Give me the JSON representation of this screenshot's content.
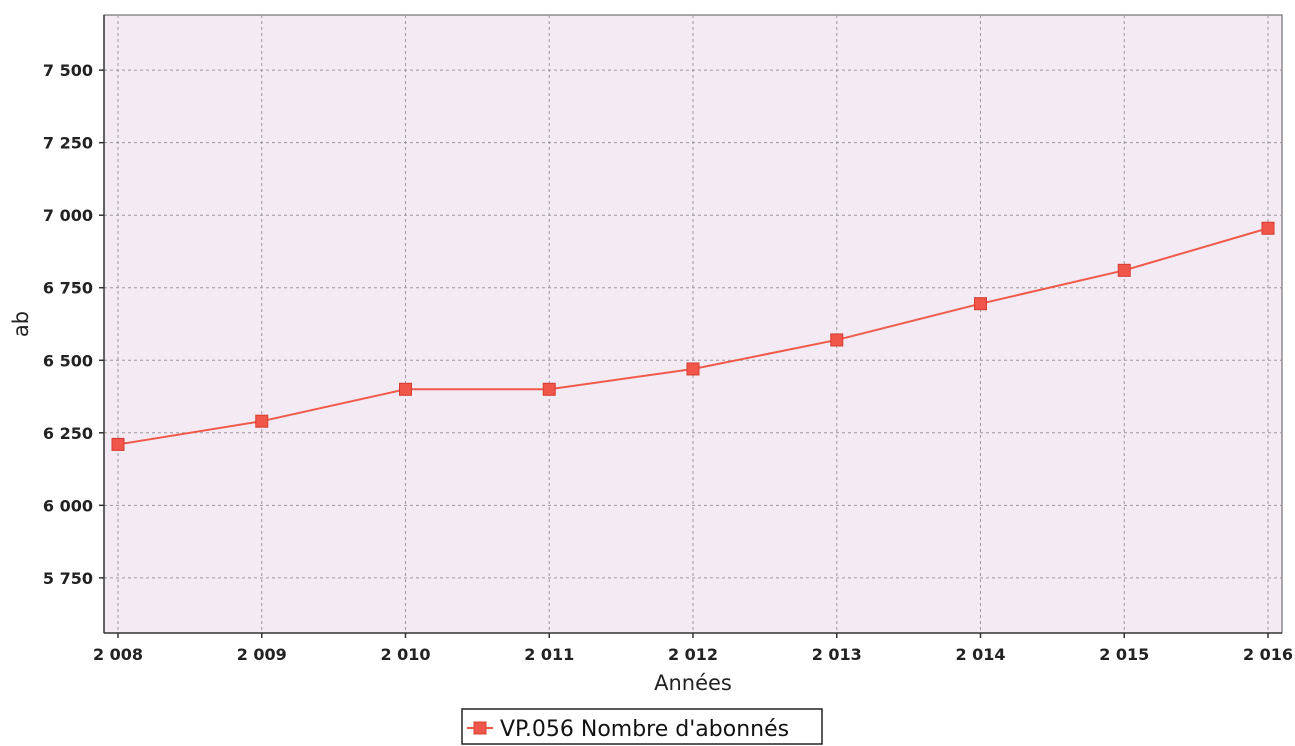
{
  "chart_data": {
    "type": "line",
    "x": [
      2008,
      2009,
      2010,
      2011,
      2012,
      2013,
      2014,
      2015,
      2016
    ],
    "x_tick_labels": [
      "2 008",
      "2 009",
      "2 010",
      "2 011",
      "2 012",
      "2 013",
      "2 014",
      "2 015",
      "2 016"
    ],
    "series": [
      {
        "name": "VP.056 Nombre d'abonnés",
        "values": [
          6210,
          6290,
          6400,
          6400,
          6470,
          6570,
          6695,
          6810,
          6955
        ],
        "color": "#f05a4a",
        "marker": "square"
      }
    ],
    "y_ticks": [
      5750,
      6000,
      6250,
      6500,
      6750,
      7000,
      7250,
      7500
    ],
    "y_tick_labels": [
      "5 750",
      "6 000",
      "6 250",
      "6 500",
      "6 750",
      "7 000",
      "7 250",
      "7 500"
    ],
    "xlabel": "Années",
    "ylabel": "ab",
    "xlim": [
      2008,
      2016
    ],
    "ylim": [
      5560,
      7690
    ],
    "grid": true,
    "legend_position": "bottom-center",
    "colors": {
      "plot_background": "#f3eaf3",
      "grid": "#9a9a9a",
      "line": "#f05a4a",
      "marker": "#f2564a"
    }
  }
}
